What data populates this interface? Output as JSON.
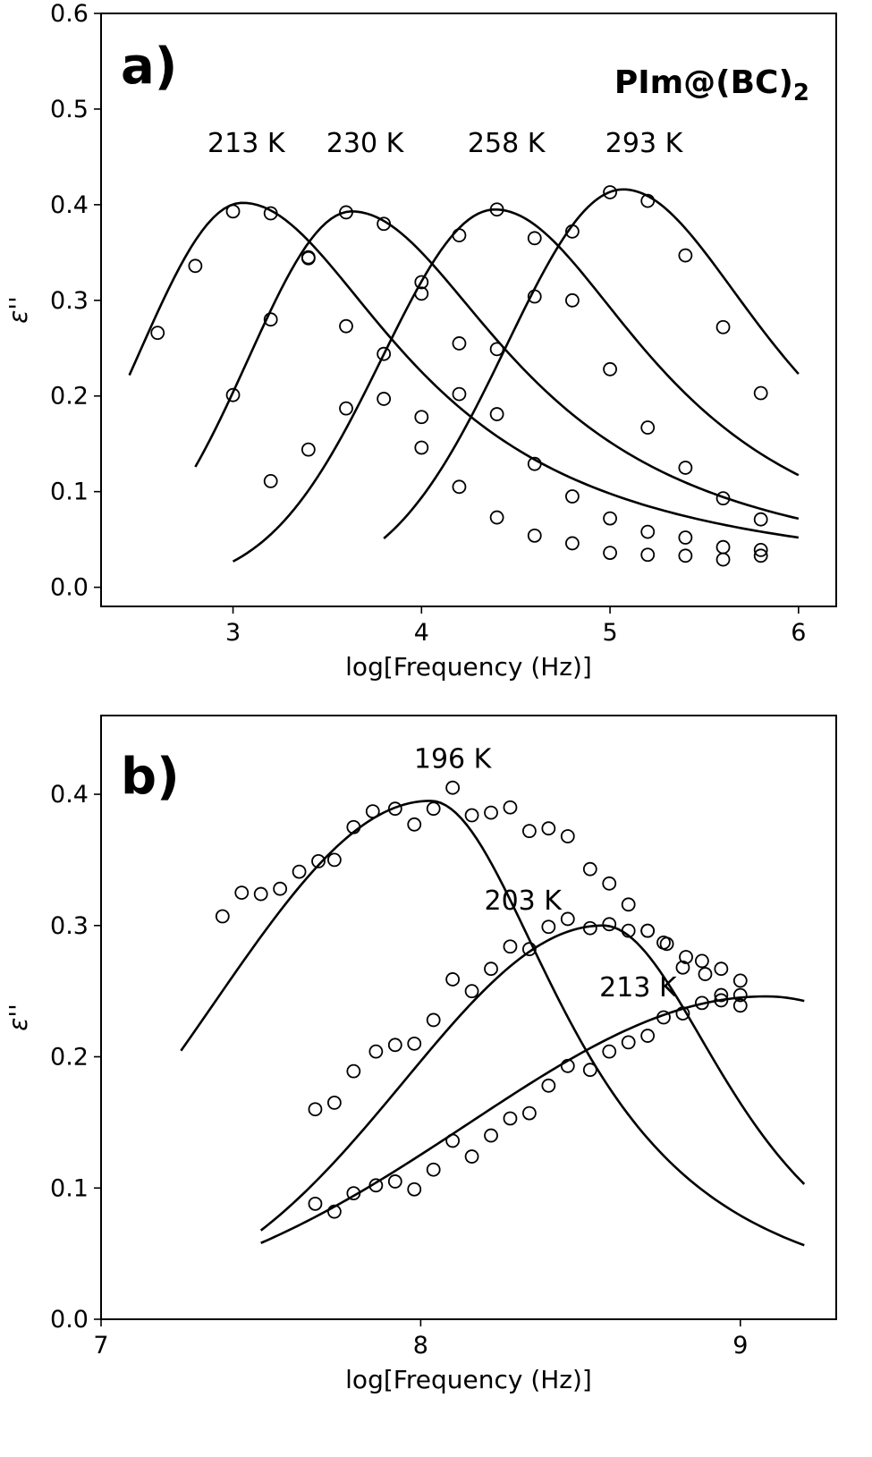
{
  "chart_data": [
    {
      "type": "scatter",
      "panel_label": "a)",
      "compound_label": "PIm@(BC)",
      "compound_subscript": "2",
      "xlabel": "log[Frequency (Hz)]",
      "ylabel": "ε''",
      "xlim": [
        2.3,
        6.2
      ],
      "ylim": [
        -0.02,
        0.6
      ],
      "xticks": [
        3,
        4,
        5,
        6
      ],
      "yticks": [
        0.0,
        0.1,
        0.2,
        0.3,
        0.4,
        0.5,
        0.6
      ],
      "xtick_labels": [
        "3",
        "4",
        "5",
        "6"
      ],
      "ytick_labels": [
        "0.0",
        "0.1",
        "0.2",
        "0.3",
        "0.4",
        "0.5",
        "0.6"
      ],
      "grid": false,
      "series": [
        {
          "temperature": "213 K",
          "label_pos": [
            3.07,
            0.455
          ],
          "points": [
            [
              2.6,
              0.266
            ],
            [
              2.8,
              0.336
            ],
            [
              3.0,
              0.393
            ],
            [
              3.2,
              0.391
            ],
            [
              3.4,
              0.345
            ],
            [
              3.6,
              0.273
            ],
            [
              3.8,
              0.197
            ],
            [
              4.0,
              0.146
            ],
            [
              4.2,
              0.105
            ],
            [
              4.4,
              0.073
            ],
            [
              4.6,
              0.054
            ],
            [
              4.8,
              0.046
            ],
            [
              5.0,
              0.036
            ],
            [
              5.2,
              0.034
            ],
            [
              5.4,
              0.033
            ],
            [
              5.6,
              0.029
            ],
            [
              5.8,
              0.033
            ]
          ],
          "fit": {
            "x_start": 2.45,
            "x_end": 6.0,
            "peak_x": 3.05,
            "peak_y": 0.402,
            "left_width": 0.55,
            "right_slope": 1.0,
            "right_shape": 0.9
          }
        },
        {
          "temperature": "230 K",
          "label_pos": [
            3.7,
            0.455
          ],
          "points": [
            [
              3.0,
              0.201
            ],
            [
              3.2,
              0.28
            ],
            [
              3.4,
              0.344
            ],
            [
              3.6,
              0.392
            ],
            [
              3.8,
              0.38
            ],
            [
              4.0,
              0.307
            ],
            [
              4.2,
              0.255
            ],
            [
              4.4,
              0.181
            ],
            [
              4.6,
              0.129
            ],
            [
              4.8,
              0.095
            ],
            [
              5.0,
              0.072
            ],
            [
              5.2,
              0.058
            ],
            [
              5.4,
              0.052
            ],
            [
              5.6,
              0.042
            ],
            [
              5.8,
              0.039
            ]
          ],
          "fit": {
            "x_start": 2.8,
            "x_end": 6.0,
            "peak_x": 3.63,
            "peak_y": 0.393,
            "left_width": 0.55,
            "right_slope": 1.0,
            "right_shape": 0.9
          }
        },
        {
          "temperature": "258 K",
          "label_pos": [
            4.45,
            0.455
          ],
          "points": [
            [
              3.2,
              0.111
            ],
            [
              3.4,
              0.144
            ],
            [
              3.6,
              0.187
            ],
            [
              3.8,
              0.244
            ],
            [
              4.0,
              0.319
            ],
            [
              4.2,
              0.368
            ],
            [
              4.4,
              0.395
            ],
            [
              4.6,
              0.365
            ],
            [
              4.8,
              0.3
            ],
            [
              5.0,
              0.228
            ],
            [
              5.2,
              0.167
            ],
            [
              5.4,
              0.125
            ],
            [
              5.6,
              0.093
            ],
            [
              5.8,
              0.071
            ]
          ],
          "fit": {
            "x_start": 3.0,
            "x_end": 6.0,
            "peak_x": 4.39,
            "peak_y": 0.395,
            "left_width": 0.6,
            "right_slope": 1.0,
            "right_shape": 0.95
          }
        },
        {
          "temperature": "293 K",
          "label_pos": [
            5.18,
            0.455
          ],
          "points": [
            [
              4.0,
              0.178
            ],
            [
              4.2,
              0.202
            ],
            [
              4.4,
              0.249
            ],
            [
              4.6,
              0.304
            ],
            [
              4.8,
              0.372
            ],
            [
              5.0,
              0.413
            ],
            [
              5.2,
              0.404
            ],
            [
              5.4,
              0.347
            ],
            [
              5.6,
              0.272
            ],
            [
              5.8,
              0.203
            ]
          ],
          "fit": {
            "x_start": 3.8,
            "x_end": 6.0,
            "peak_x": 5.07,
            "peak_y": 0.416,
            "left_width": 0.62,
            "right_slope": 1.0,
            "right_shape": 1.0
          }
        }
      ]
    },
    {
      "type": "scatter",
      "panel_label": "b)",
      "xlabel": "log[Frequency (Hz)]",
      "ylabel": "ε''",
      "xlim": [
        7.0,
        9.3
      ],
      "ylim": [
        0.0,
        0.46
      ],
      "xticks": [
        7,
        8,
        9
      ],
      "yticks": [
        0.0,
        0.1,
        0.2,
        0.3,
        0.4
      ],
      "xtick_labels": [
        "7",
        "8",
        "9"
      ],
      "ytick_labels": [
        "0.0",
        "0.1",
        "0.2",
        "0.3",
        "0.4"
      ],
      "grid": false,
      "series": [
        {
          "temperature": "196 K",
          "label_pos": [
            8.1,
            0.42
          ],
          "points": [
            [
              7.38,
              0.307
            ],
            [
              7.44,
              0.325
            ],
            [
              7.5,
              0.324
            ],
            [
              7.56,
              0.328
            ],
            [
              7.62,
              0.341
            ],
            [
              7.68,
              0.349
            ],
            [
              7.73,
              0.35
            ],
            [
              7.79,
              0.375
            ],
            [
              7.85,
              0.387
            ],
            [
              7.92,
              0.389
            ],
            [
              7.98,
              0.377
            ],
            [
              8.04,
              0.389
            ],
            [
              8.1,
              0.405
            ],
            [
              8.16,
              0.384
            ],
            [
              8.22,
              0.386
            ],
            [
              8.28,
              0.39
            ],
            [
              8.34,
              0.372
            ],
            [
              8.4,
              0.374
            ],
            [
              8.46,
              0.368
            ],
            [
              8.53,
              0.343
            ],
            [
              8.59,
              0.332
            ],
            [
              8.65,
              0.316
            ],
            [
              8.71,
              0.296
            ],
            [
              8.77,
              0.286
            ],
            [
              8.83,
              0.276
            ],
            [
              8.89,
              0.263
            ],
            [
              8.94,
              0.267
            ],
            [
              9.0,
              0.258
            ]
          ],
          "fit": {
            "x_start": 7.25,
            "x_end": 9.2,
            "peak_x": 8.03,
            "peak_y": 0.395,
            "left_width": 0.68,
            "right_slope": 1.8,
            "right_shape": 1.15
          }
        },
        {
          "temperature": "203 K",
          "label_pos": [
            8.32,
            0.312
          ],
          "points": [
            [
              7.67,
              0.16
            ],
            [
              7.73,
              0.165
            ],
            [
              7.79,
              0.189
            ],
            [
              7.86,
              0.204
            ],
            [
              7.92,
              0.209
            ],
            [
              7.98,
              0.21
            ],
            [
              8.04,
              0.228
            ],
            [
              8.1,
              0.259
            ],
            [
              8.16,
              0.25
            ],
            [
              8.22,
              0.267
            ],
            [
              8.28,
              0.284
            ],
            [
              8.34,
              0.282
            ],
            [
              8.4,
              0.299
            ],
            [
              8.46,
              0.305
            ],
            [
              8.53,
              0.298
            ],
            [
              8.59,
              0.301
            ],
            [
              8.65,
              0.296
            ],
            [
              8.71,
              0.296
            ],
            [
              8.76,
              0.287
            ],
            [
              8.82,
              0.268
            ],
            [
              8.88,
              0.273
            ],
            [
              8.94,
              0.247
            ],
            [
              9.0,
              0.239
            ]
          ],
          "fit": {
            "x_start": 7.5,
            "x_end": 9.2,
            "peak_x": 8.57,
            "peak_y": 0.3,
            "left_width": 0.62,
            "right_slope": 1.7,
            "right_shape": 1.4
          }
        },
        {
          "temperature": "213 K",
          "label_pos": [
            8.68,
            0.246
          ],
          "points": [
            [
              7.67,
              0.088
            ],
            [
              7.73,
              0.082
            ],
            [
              7.79,
              0.096
            ],
            [
              7.86,
              0.102
            ],
            [
              7.92,
              0.105
            ],
            [
              7.98,
              0.099
            ],
            [
              8.04,
              0.114
            ],
            [
              8.1,
              0.136
            ],
            [
              8.16,
              0.124
            ],
            [
              8.22,
              0.14
            ],
            [
              8.28,
              0.153
            ],
            [
              8.34,
              0.157
            ],
            [
              8.4,
              0.178
            ],
            [
              8.46,
              0.193
            ],
            [
              8.53,
              0.19
            ],
            [
              8.59,
              0.204
            ],
            [
              8.65,
              0.211
            ],
            [
              8.71,
              0.216
            ],
            [
              8.76,
              0.23
            ],
            [
              8.82,
              0.233
            ],
            [
              8.88,
              0.241
            ],
            [
              8.94,
              0.243
            ],
            [
              9.0,
              0.247
            ]
          ],
          "fit": {
            "x_start": 7.5,
            "x_end": 9.2,
            "peak_x": 9.08,
            "peak_y": 0.246,
            "left_width": 0.93,
            "right_slope": 1.0,
            "right_shape": 1.0
          }
        }
      ]
    }
  ]
}
